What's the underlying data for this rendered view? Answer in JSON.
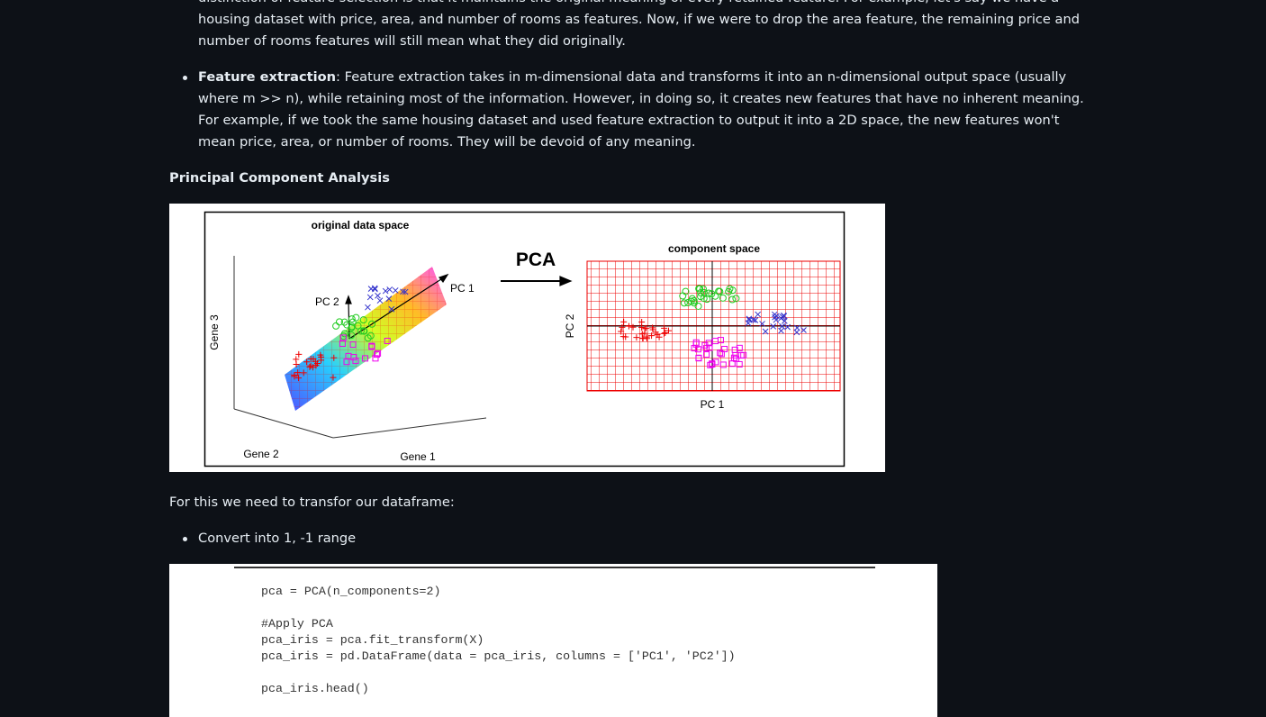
{
  "document": {
    "paragraph": "distinction of feature selection is that it maintains the original meaning of every retained feature. For example, let's say we have a housing dataset with price, area, and number of rooms as features. Now, if we were to drop the area feature, the remaining price and number of rooms features will still mean what they did originally.",
    "bullet": {
      "term": "Feature extraction",
      "text": ": Feature extraction takes in m-dimensional data and transforms it into an n-dimensional output space (usually where m >> n), while retaining most of the information. However, in doing so, it creates new features that have no inherent meaning. For example, if we took the same housing dataset and used feature extraction to output it into a 2D space, the new features won't mean price, area, or number of rooms. They will be devoid of any meaning."
    },
    "heading": "Principal Component Analysis",
    "figure": {
      "left_title": "original data space",
      "arrow_label": "PCA",
      "right_title": "component space",
      "pc1": "PC 1",
      "pc2": "PC 2",
      "gene1": "Gene 1",
      "gene2": "Gene 2",
      "gene3": "Gene 3",
      "comp_x": "PC 1",
      "comp_y": "PC 2"
    },
    "after_text": "For this we need to transfor our dataframe:",
    "step": "Convert into 1, -1 range",
    "code": {
      "blocks": [
        [
          "pca = PCA(n_components=2)"
        ],
        [
          "#Apply PCA",
          "pca_iris = pca.fit_transform(X)",
          "pca_iris = pd.DataFrame(data = pca_iris, columns = ['PC1', 'PC2'])"
        ],
        [
          "pca_iris.head()"
        ]
      ]
    }
  }
}
